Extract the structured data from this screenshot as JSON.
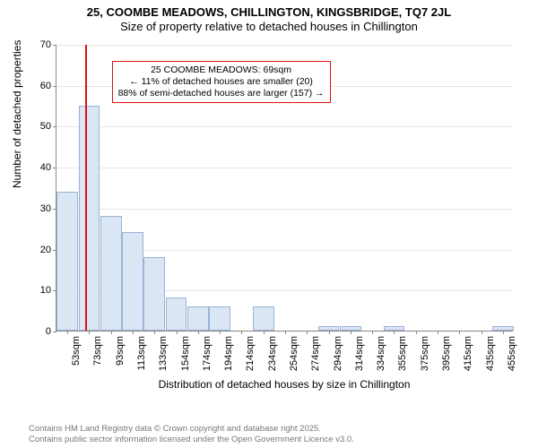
{
  "title_line1": "25, COOMBE MEADOWS, CHILLINGTON, KINGSBRIDGE, TQ7 2JL",
  "title_line2": "Size of property relative to detached houses in Chillington",
  "chart": {
    "type": "histogram",
    "ylabel": "Number of detached properties",
    "xlabel": "Distribution of detached houses by size in Chillington",
    "ylim": [
      0,
      70
    ],
    "ytick_step": 10,
    "x_categories": [
      "53sqm",
      "73sqm",
      "93sqm",
      "113sqm",
      "133sqm",
      "154sqm",
      "174sqm",
      "194sqm",
      "214sqm",
      "234sqm",
      "254sqm",
      "274sqm",
      "294sqm",
      "314sqm",
      "334sqm",
      "355sqm",
      "375sqm",
      "395sqm",
      "415sqm",
      "435sqm",
      "455sqm"
    ],
    "values": [
      34,
      55,
      28,
      24,
      18,
      8,
      6,
      6,
      0,
      6,
      0,
      0,
      1,
      1,
      0,
      1,
      0,
      0,
      0,
      0,
      1
    ],
    "bar_fill": "#dbe6f4",
    "bar_stroke": "#9ab3d5",
    "grid_color": "#e6e6e6",
    "axis_color": "#888888",
    "background_color": "#ffffff",
    "reference_line": {
      "position_category_index": 1,
      "fraction_into_bin": -0.2,
      "color": "#dd1111",
      "box": {
        "line1": "25 COOMBE MEADOWS: 69sqm",
        "line2": "← 11% of detached houses are smaller (20)",
        "line3": "88% of semi-detached houses are larger (157) →"
      }
    }
  },
  "footer_line1": "Contains HM Land Registry data © Crown copyright and database right 2025.",
  "footer_line2": "Contains public sector information licensed under the Open Government Licence v3.0."
}
